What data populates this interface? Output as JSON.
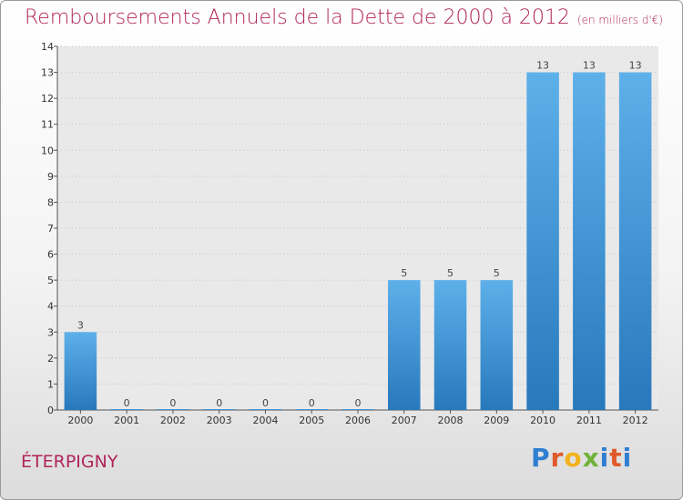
{
  "title": "Remboursements Annuels de la Dette de 2000 à 2012",
  "subtitle": "(en milliers d'€)",
  "commune": "ÉTERPIGNY",
  "logo": {
    "text": "Proxiti",
    "letters": [
      {
        "ch": "P",
        "color": "#2f7fd1"
      },
      {
        "ch": "r",
        "color": "#e0592a"
      },
      {
        "ch": "o",
        "color": "#f2b21b"
      },
      {
        "ch": "x",
        "color": "#6fb23a"
      },
      {
        "ch": "i",
        "color": "#2f7fd1"
      },
      {
        "ch": "t",
        "color": "#e0592a"
      },
      {
        "ch": "i",
        "color": "#2f7fd1"
      }
    ]
  },
  "colors": {
    "title": "#b0245a",
    "bar_top": "#5eb0ea",
    "bar_bottom": "#2779bc",
    "grid": "#c8c8c8",
    "plot_bg": "#e9e9e9"
  },
  "chart_data": {
    "type": "bar",
    "categories": [
      "2000",
      "2001",
      "2002",
      "2003",
      "2004",
      "2005",
      "2006",
      "2007",
      "2008",
      "2009",
      "2010",
      "2011",
      "2012"
    ],
    "values": [
      3,
      0,
      0,
      0,
      0,
      0,
      0,
      5,
      5,
      5,
      13,
      13,
      13
    ],
    "data_labels": [
      "3",
      "0",
      "0",
      "0",
      "0",
      "0",
      "0",
      "5",
      "5",
      "5",
      "13",
      "13",
      "13"
    ],
    "ylim": [
      0,
      14
    ],
    "yticks": [
      0,
      1,
      2,
      3,
      4,
      5,
      6,
      7,
      8,
      9,
      10,
      11,
      12,
      13,
      14
    ],
    "ytick_labels": [
      "0",
      "1",
      "2",
      "3",
      "4",
      "5",
      "6",
      "7",
      "8",
      "9",
      "10",
      "11",
      "12",
      "13",
      "14"
    ],
    "grid": true,
    "xlabel": "",
    "ylabel": ""
  }
}
